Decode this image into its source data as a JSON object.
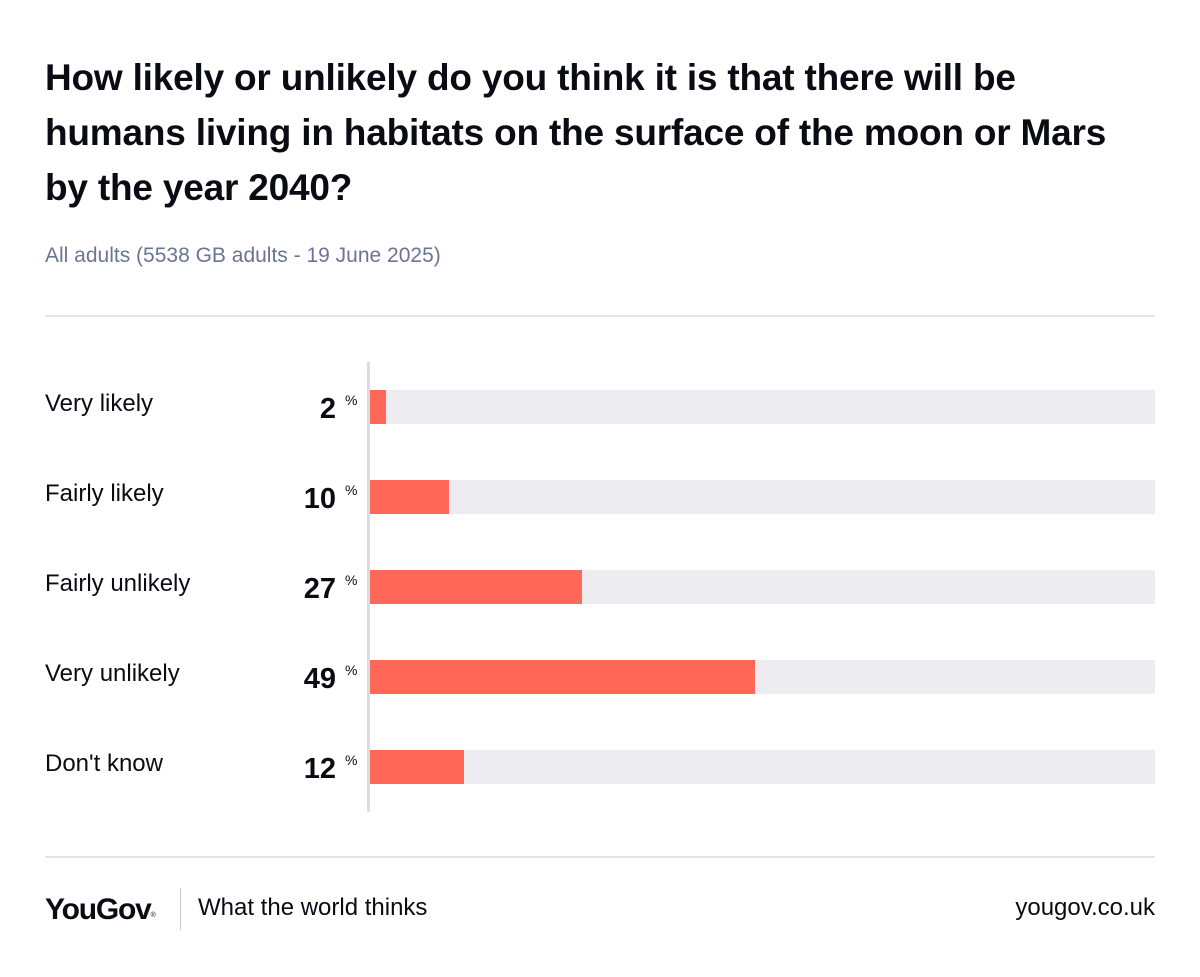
{
  "header": {
    "title": "How likely or unlikely do you think it is that there will be humans living in habitats on the surface of the moon or Mars by the year 2040?",
    "subtitle": "All adults (5538 GB adults - 19 June 2025)"
  },
  "chart_data": {
    "type": "bar",
    "orientation": "horizontal",
    "categories": [
      "Very likely",
      "Fairly likely",
      "Fairly unlikely",
      "Very unlikely",
      "Don't know"
    ],
    "values": [
      2,
      10,
      27,
      49,
      12
    ],
    "value_suffix": "%",
    "xlim": [
      0,
      100
    ],
    "grid": false,
    "colors": {
      "bar": "#ff6859",
      "track": "#ededf1"
    }
  },
  "footer": {
    "logo": "YouGov",
    "logo_mark": "®",
    "tagline": "What the world thinks",
    "url": "yougov.co.uk"
  }
}
